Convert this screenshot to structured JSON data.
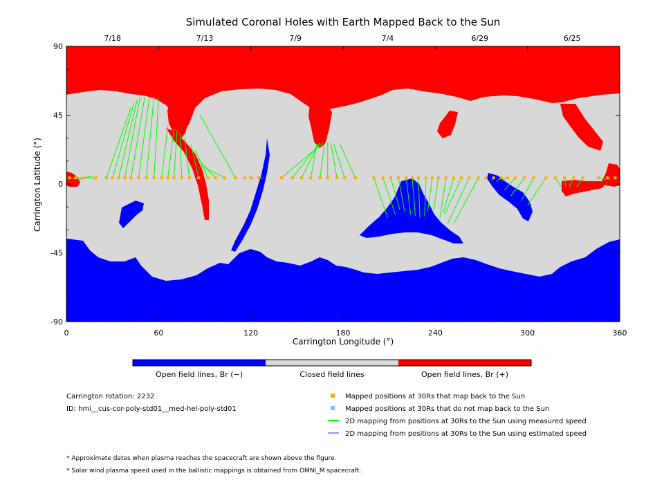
{
  "chart_data": {
    "type": "heatmap",
    "title": "Simulated Coronal Holes with Earth Mapped Back to the Sun",
    "xlabel": "Carrington Longitude (°)",
    "ylabel": "Carrington Latitude (°)",
    "xlim": [
      0,
      360
    ],
    "ylim": [
      -90,
      90
    ],
    "x_ticks": [
      "0",
      "60",
      "120",
      "180",
      "240",
      "300",
      "360"
    ],
    "x_tick_values": [
      0,
      60,
      120,
      180,
      240,
      300,
      360
    ],
    "y_ticks": [
      "90",
      "45",
      "0",
      "-45",
      "-90"
    ],
    "y_tick_values": [
      90,
      45,
      0,
      -45,
      -90
    ],
    "top_axis_dates": [
      {
        "label": "7/18",
        "lon": 30
      },
      {
        "label": "7/13",
        "lon": 90
      },
      {
        "label": "7/9",
        "lon": 149
      },
      {
        "label": "7/4",
        "lon": 209
      },
      {
        "label": "6/29",
        "lon": 269
      },
      {
        "label": "6/25",
        "lon": 329
      }
    ],
    "colors": {
      "open_negative": "#0000ff",
      "closed": "#d8d8d8",
      "open_positive": "#ff0000",
      "mapped_yes": "#ffaa00",
      "mapped_no": "#80bfff",
      "measured": "#00ff00",
      "estimated": "#b080ff"
    },
    "colorbar": [
      {
        "label": "Open field lines, Br (−)",
        "color": "#0000ff"
      },
      {
        "label": "Closed field lines",
        "color": "#d8d8d8"
      },
      {
        "label": "Open field lines, Br (+)",
        "color": "#ff0000"
      }
    ],
    "regions": {
      "north_polar_positive": {
        "polarity": "+",
        "lat_min_approx": 60
      },
      "south_polar_negative": {
        "polarity": "-",
        "lat_max_approx": -40
      }
    },
    "mapped_points": [
      {
        "lon": 2,
        "lat": 4,
        "sun_lon": 10,
        "sun_lat": 3
      },
      {
        "lon": 6,
        "lat": 4,
        "sun_lon": 14,
        "sun_lat": 4
      },
      {
        "lon": 11,
        "lat": 4,
        "sun_lon": 17,
        "sun_lat": 5
      },
      {
        "lon": 19,
        "lat": 4,
        "sun_lon": 14,
        "sun_lat": 4
      },
      {
        "lon": 26,
        "lat": 4,
        "sun_lon": 42,
        "sun_lat": 50
      },
      {
        "lon": 30,
        "lat": 4,
        "sun_lon": 44,
        "sun_lat": 53
      },
      {
        "lon": 34,
        "lat": 4,
        "sun_lon": 46,
        "sun_lat": 55
      },
      {
        "lon": 38,
        "lat": 4,
        "sun_lon": 48,
        "sun_lat": 57
      },
      {
        "lon": 42,
        "lat": 4,
        "sun_lon": 51,
        "sun_lat": 57
      },
      {
        "lon": 47,
        "lat": 4,
        "sun_lon": 54,
        "sun_lat": 57
      },
      {
        "lon": 52,
        "lat": 4,
        "sun_lon": 57,
        "sun_lat": 57
      },
      {
        "lon": 57,
        "lat": 4,
        "sun_lon": 60,
        "sun_lat": 56
      },
      {
        "lon": 62,
        "lat": 4,
        "sun_lon": 66,
        "sun_lat": 38
      },
      {
        "lon": 66,
        "lat": 4,
        "sun_lon": 70,
        "sun_lat": 36
      },
      {
        "lon": 70,
        "lat": 4,
        "sun_lon": 72,
        "sun_lat": 35
      },
      {
        "lon": 75,
        "lat": 4,
        "sun_lon": 74,
        "sun_lat": 33
      },
      {
        "lon": 80,
        "lat": 4,
        "sun_lon": 77,
        "sun_lat": 30
      },
      {
        "lon": 86,
        "lat": 4,
        "sun_lon": 81,
        "sun_lat": 26
      },
      {
        "lon": 92,
        "lat": 4,
        "sun_lon": 84,
        "sun_lat": 22
      },
      {
        "lon": 97,
        "lat": 4,
        "sun_lon": 85,
        "sun_lat": 17
      },
      {
        "lon": 103,
        "lat": 4,
        "sun_lon": 87,
        "sun_lat": 12
      },
      {
        "lon": 110,
        "lat": 4,
        "sun_lon": 87,
        "sun_lat": 45
      },
      {
        "lon": 116,
        "lat": 4,
        "sun_lon": 115,
        "sun_lat": 4
      },
      {
        "lon": 120,
        "lat": 4,
        "sun_lon": 122,
        "sun_lat": 4
      },
      {
        "lon": 125,
        "lat": 4,
        "sun_lon": 128,
        "sun_lat": 4
      },
      {
        "lon": 140,
        "lat": 4,
        "sun_lon": 167,
        "sun_lat": 27
      },
      {
        "lon": 147,
        "lat": 4,
        "sun_lon": 165,
        "sun_lat": 27
      },
      {
        "lon": 153,
        "lat": 4,
        "sun_lon": 164,
        "sun_lat": 26
      },
      {
        "lon": 159,
        "lat": 4,
        "sun_lon": 163,
        "sun_lat": 26
      },
      {
        "lon": 165,
        "lat": 4,
        "sun_lon": 168,
        "sun_lat": 27
      },
      {
        "lon": 170,
        "lat": 4,
        "sun_lon": 170,
        "sun_lat": 27
      },
      {
        "lon": 176,
        "lat": 4,
        "sun_lon": 172,
        "sun_lat": 27
      },
      {
        "lon": 181,
        "lat": 4,
        "sun_lon": 174,
        "sun_lat": 26
      },
      {
        "lon": 188,
        "lat": 4,
        "sun_lon": 178,
        "sun_lat": 26
      },
      {
        "lon": 200,
        "lat": 4,
        "sun_lon": 209,
        "sun_lat": -22
      },
      {
        "lon": 206,
        "lat": 4,
        "sun_lon": 214,
        "sun_lat": -20
      },
      {
        "lon": 211,
        "lat": 4,
        "sun_lon": 217,
        "sun_lat": -17
      },
      {
        "lon": 216,
        "lat": 4,
        "sun_lon": 220,
        "sun_lat": -18
      },
      {
        "lon": 221,
        "lat": 4,
        "sun_lon": 224,
        "sun_lat": -20
      },
      {
        "lon": 225,
        "lat": 4,
        "sun_lon": 227,
        "sun_lat": -21
      },
      {
        "lon": 229,
        "lat": 4,
        "sun_lon": 230,
        "sun_lat": -22
      },
      {
        "lon": 234,
        "lat": 4,
        "sun_lon": 233,
        "sun_lat": -21
      },
      {
        "lon": 238,
        "lat": 4,
        "sun_lon": 235,
        "sun_lat": -18
      },
      {
        "lon": 242,
        "lat": 4,
        "sun_lon": 239,
        "sun_lat": -17
      },
      {
        "lon": 247,
        "lat": 4,
        "sun_lon": 243,
        "sun_lat": -22
      },
      {
        "lon": 252,
        "lat": 4,
        "sun_lon": 245,
        "sun_lat": -19
      },
      {
        "lon": 257,
        "lat": 4,
        "sun_lon": 246,
        "sun_lat": -20
      },
      {
        "lon": 262,
        "lat": 4,
        "sun_lon": 248,
        "sun_lat": -26
      },
      {
        "lon": 268,
        "lat": 4,
        "sun_lon": 252,
        "sun_lat": -26
      },
      {
        "lon": 273,
        "lat": 4,
        "sun_lon": 272,
        "sun_lat": 3
      },
      {
        "lon": 278,
        "lat": 4,
        "sun_lon": 276,
        "sun_lat": 2
      },
      {
        "lon": 283,
        "lat": 4,
        "sun_lon": 280,
        "sun_lat": 2
      },
      {
        "lon": 287,
        "lat": 4,
        "sun_lon": 283,
        "sun_lat": 2
      },
      {
        "lon": 292,
        "lat": 4,
        "sun_lon": 285,
        "sun_lat": -4
      },
      {
        "lon": 298,
        "lat": 4,
        "sun_lon": 289,
        "sun_lat": -8
      },
      {
        "lon": 304,
        "lat": 4,
        "sun_lon": 296,
        "sun_lat": -11
      },
      {
        "lon": 312,
        "lat": 4,
        "sun_lon": 300,
        "sun_lat": -14
      },
      {
        "lon": 318,
        "lat": 4,
        "sun_lon": 322,
        "sun_lat": -2
      },
      {
        "lon": 324,
        "lat": 4,
        "sun_lon": 325,
        "sun_lat": -2
      },
      {
        "lon": 330,
        "lat": 4,
        "sun_lon": 327,
        "sun_lat": -2
      },
      {
        "lon": 336,
        "lat": 4,
        "sun_lon": 332,
        "sun_lat": -2
      },
      {
        "lon": 346,
        "lat": 4,
        "sun_lon": 351,
        "sun_lat": 3
      },
      {
        "lon": 352,
        "lat": 4,
        "sun_lon": 354,
        "sun_lat": 3
      },
      {
        "lon": 357,
        "lat": 4,
        "sun_lon": 358,
        "sun_lat": 4
      }
    ]
  },
  "info": {
    "carrington_rotation": "Carrington rotation: 2232",
    "id": "ID: hmi__cus-cor-poly-std01__med-hel-poly-std01"
  },
  "legend": {
    "mapped": "Mapped positions at 30Rs that map back to the Sun",
    "not_mapped": "Mapped positions at 30Rs that do not map back to the Sun",
    "measured": "2D mapping from positions at 30Rs to the Sun using measured speed",
    "estimated": "2D mapping from positions at 30Rs to the Sun using estimated speed"
  },
  "notes": [
    "* Approximate dates when plasma reaches the spacecraft are shown above the figure.",
    "* Solar wind plasma speed used in the ballistic mappings is obtained from OMNI_M spacecraft."
  ]
}
